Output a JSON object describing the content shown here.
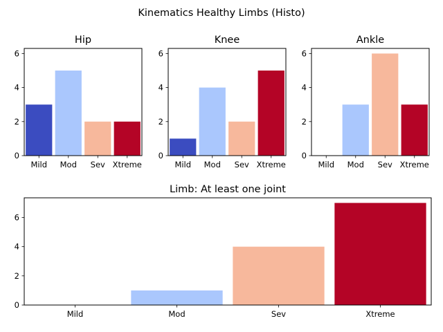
{
  "figure": {
    "suptitle": "Kinematics Healthy Limbs (Histo)"
  },
  "chart_data": [
    {
      "type": "bar",
      "title": "Hip",
      "categories": [
        "Mild",
        "Mod",
        "Sev",
        "Xtreme"
      ],
      "values": [
        3,
        5,
        2,
        2
      ],
      "ylim": [
        0,
        6.3
      ],
      "yticks": [
        0,
        2,
        4,
        6
      ],
      "grid": false,
      "colors": [
        "#3b4cc0",
        "#aac7fd",
        "#f7b89c",
        "#b40426"
      ]
    },
    {
      "type": "bar",
      "title": "Knee",
      "categories": [
        "Mild",
        "Mod",
        "Sev",
        "Xtreme"
      ],
      "values": [
        1,
        4,
        2,
        5
      ],
      "ylim": [
        0,
        6.3
      ],
      "yticks": [
        0,
        2,
        4,
        6
      ],
      "grid": false,
      "colors": [
        "#3b4cc0",
        "#aac7fd",
        "#f7b89c",
        "#b40426"
      ]
    },
    {
      "type": "bar",
      "title": "Ankle",
      "categories": [
        "Mild",
        "Mod",
        "Sev",
        "Xtreme"
      ],
      "values": [
        0,
        3,
        6,
        3
      ],
      "ylim": [
        0,
        6.3
      ],
      "yticks": [
        0,
        2,
        4,
        6
      ],
      "grid": false,
      "colors": [
        "#3b4cc0",
        "#aac7fd",
        "#f7b89c",
        "#b40426"
      ]
    },
    {
      "type": "bar",
      "title": "Limb: At least one joint",
      "categories": [
        "Mild",
        "Mod",
        "Sev",
        "Xtreme"
      ],
      "values": [
        0,
        1,
        4,
        7
      ],
      "ylim": [
        0,
        7.35
      ],
      "yticks": [
        0,
        2,
        4,
        6
      ],
      "grid": false,
      "colors": [
        "#3b4cc0",
        "#aac7fd",
        "#f7b89c",
        "#b40426"
      ]
    }
  ]
}
